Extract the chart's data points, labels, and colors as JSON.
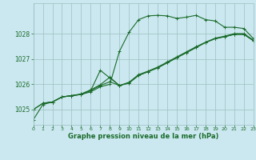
{
  "title": "Graphe pression niveau de la mer (hPa)",
  "bg_color": "#cbe8f0",
  "grid_color": "#9dbfbf",
  "line_color": "#1a6b2a",
  "xlim": [
    0,
    23
  ],
  "ylim": [
    1024.4,
    1029.2
  ],
  "yticks": [
    1025,
    1026,
    1027,
    1028
  ],
  "xticks": [
    0,
    1,
    2,
    3,
    4,
    5,
    6,
    7,
    8,
    9,
    10,
    11,
    12,
    13,
    14,
    15,
    16,
    17,
    18,
    19,
    20,
    21,
    22,
    23
  ],
  "line1_x": [
    0,
    1,
    2,
    3,
    4,
    5,
    6,
    7,
    8,
    9,
    10,
    11,
    12,
    13,
    14,
    15,
    16,
    17,
    18,
    19,
    20,
    21,
    22,
    23
  ],
  "line1_y": [
    1024.6,
    1025.2,
    1025.3,
    1025.5,
    1025.55,
    1025.6,
    1025.7,
    1025.9,
    1026.0,
    1027.3,
    1028.05,
    1028.55,
    1028.7,
    1028.72,
    1028.7,
    1028.6,
    1028.65,
    1028.72,
    1028.55,
    1028.5,
    1028.25,
    1028.25,
    1028.2,
    1027.8
  ],
  "line2_x": [
    0,
    1,
    2,
    3,
    4,
    5,
    6,
    7,
    8,
    9,
    10,
    11,
    12,
    13,
    14,
    15,
    16,
    17,
    18,
    19,
    20,
    21,
    22,
    23
  ],
  "line2_y": [
    1025.0,
    1025.25,
    1025.3,
    1025.5,
    1025.55,
    1025.6,
    1025.75,
    1025.95,
    1026.1,
    1025.95,
    1026.05,
    1026.35,
    1026.5,
    1026.65,
    1026.85,
    1027.05,
    1027.25,
    1027.45,
    1027.65,
    1027.8,
    1027.88,
    1027.97,
    1027.97,
    1027.72
  ],
  "line3_x": [
    1,
    2,
    3,
    4,
    5,
    6,
    7,
    8,
    9,
    10,
    11,
    12,
    13,
    14,
    15,
    16,
    17,
    18,
    19,
    20,
    21,
    22,
    23
  ],
  "line3_y": [
    1025.25,
    1025.3,
    1025.5,
    1025.55,
    1025.6,
    1025.75,
    1026.55,
    1026.25,
    1025.95,
    1026.05,
    1026.35,
    1026.5,
    1026.65,
    1026.85,
    1027.05,
    1027.25,
    1027.45,
    1027.65,
    1027.8,
    1027.88,
    1027.97,
    1027.97,
    1027.72
  ],
  "line4_x": [
    0,
    1,
    2,
    3,
    4,
    5,
    6,
    7,
    8,
    9,
    10,
    11,
    12,
    13,
    14,
    15,
    16,
    17,
    18,
    19,
    20,
    21,
    22,
    23
  ],
  "line4_y": [
    1025.0,
    1025.25,
    1025.3,
    1025.5,
    1025.55,
    1025.62,
    1025.78,
    1025.98,
    1026.28,
    1025.95,
    1026.08,
    1026.38,
    1026.52,
    1026.68,
    1026.88,
    1027.08,
    1027.28,
    1027.48,
    1027.66,
    1027.82,
    1027.9,
    1028.0,
    1028.0,
    1027.74
  ]
}
